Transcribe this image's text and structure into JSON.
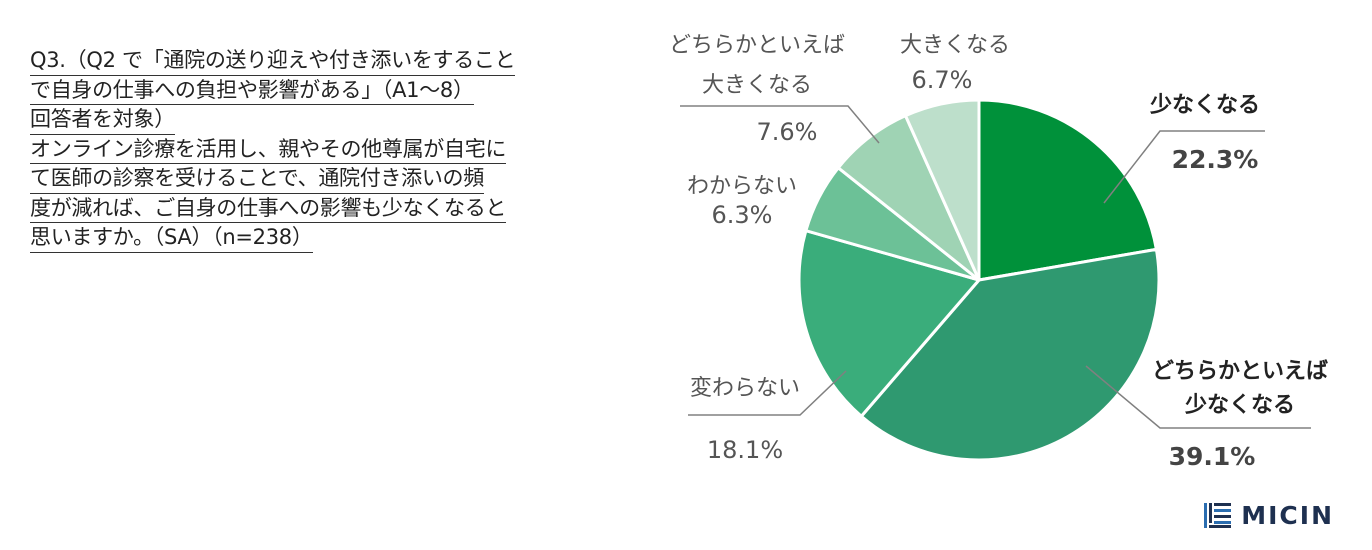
{
  "question": {
    "lines": [
      "Q3.（Q2 で「通院の送り迎えや付き添いをすること",
      "で自身の仕事への負担や影響がある」（A1～8）",
      "回答者を対象）",
      "オンライン診療を活用し、親やその他尊属が自宅に",
      "て医師の診察を受けることで、通院付き添いの頻",
      "度が減れば、ご自身の仕事への影響も少なくなると",
      "思いますか。（SA）（n=238）"
    ]
  },
  "chart_data": {
    "type": "pie",
    "start_angle": "12 o'clock",
    "direction": "clockwise",
    "slices": [
      {
        "label": "少なくなる",
        "value": 22.3,
        "value_label": "22.3%",
        "color": "#00913a"
      },
      {
        "label": "どちらかといえば\n少なくなる",
        "value": 39.1,
        "value_label": "39.1%",
        "color": "#2f9970"
      },
      {
        "label": "変わらない",
        "value": 18.1,
        "value_label": "18.1%",
        "color": "#3aad7b"
      },
      {
        "label": "わからない",
        "value": 6.3,
        "value_label": "6.3%",
        "color": "#6cc197"
      },
      {
        "label": "どちらかといえば\n大きくなる",
        "value": 7.6,
        "value_label": "7.6%",
        "color": "#9fd3b4"
      },
      {
        "label": "大きくなる",
        "value": 6.7,
        "value_label": "6.7%",
        "color": "#bddfcb"
      }
    ]
  },
  "logo": {
    "text": "MICIN",
    "icon": "micin-logo-icon",
    "color": "#1e3050"
  }
}
